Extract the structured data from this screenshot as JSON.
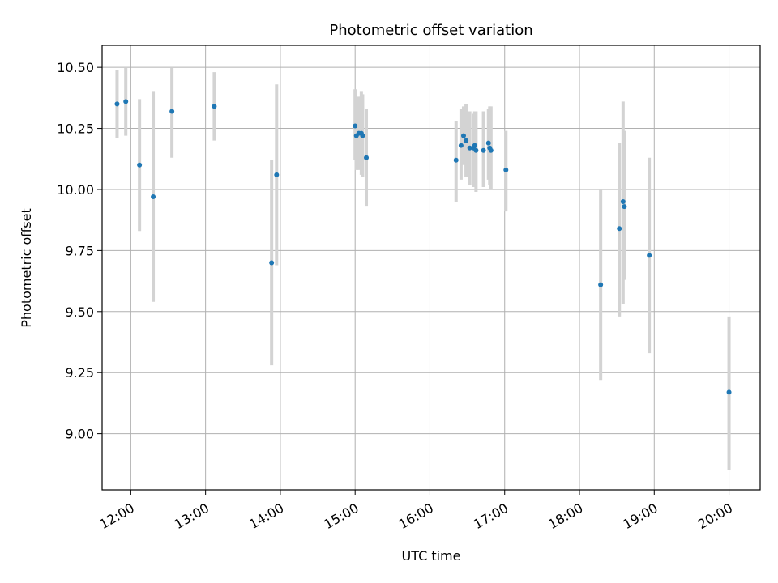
{
  "chart_data": {
    "type": "scatter",
    "title": "Photometric offset variation",
    "xlabel": "UTC time",
    "ylabel": "Photometric offset",
    "x_tick_labels": [
      "12:00",
      "13:00",
      "14:00",
      "15:00",
      "16:00",
      "17:00",
      "18:00",
      "19:00",
      "20:00"
    ],
    "x_ticks": [
      "12:00",
      "13:00",
      "14:00",
      "15:00",
      "16:00",
      "17:00",
      "18:00",
      "19:00",
      "20:00"
    ],
    "y_tick_labels": [
      "9.00",
      "9.25",
      "9.50",
      "9.75",
      "10.00",
      "10.25",
      "10.50"
    ],
    "y_ticks": [
      9.0,
      9.25,
      9.5,
      9.75,
      10.0,
      10.25,
      10.5
    ],
    "xlim": [
      "11:37",
      "20:25"
    ],
    "ylim": [
      8.77,
      10.59
    ],
    "grid": true,
    "colors": {
      "points": "#1f77b4",
      "error_bars": "#d3d3d3",
      "grid": "#b0b0b0"
    },
    "points": [
      {
        "x": "11:49",
        "y": 10.35,
        "ylow": 10.21,
        "yhigh": 10.49
      },
      {
        "x": "11:56",
        "y": 10.36,
        "ylow": 10.22,
        "yhigh": 10.5
      },
      {
        "x": "12:07",
        "y": 10.1,
        "ylow": 9.83,
        "yhigh": 10.37
      },
      {
        "x": "12:18",
        "y": 9.97,
        "ylow": 9.54,
        "yhigh": 10.4
      },
      {
        "x": "12:33",
        "y": 10.32,
        "ylow": 10.13,
        "yhigh": 10.5
      },
      {
        "x": "13:07",
        "y": 10.34,
        "ylow": 10.2,
        "yhigh": 10.48
      },
      {
        "x": "13:53",
        "y": 9.7,
        "ylow": 9.28,
        "yhigh": 10.12
      },
      {
        "x": "13:57",
        "y": 10.06,
        "ylow": 9.69,
        "yhigh": 10.43
      },
      {
        "x": "15:00",
        "y": 10.26,
        "ylow": 10.12,
        "yhigh": 10.41
      },
      {
        "x": "15:01",
        "y": 10.22,
        "ylow": 10.08,
        "yhigh": 10.37
      },
      {
        "x": "15:03",
        "y": 10.23,
        "ylow": 10.08,
        "yhigh": 10.38
      },
      {
        "x": "15:05",
        "y": 10.23,
        "ylow": 10.06,
        "yhigh": 10.4
      },
      {
        "x": "15:06",
        "y": 10.22,
        "ylow": 10.05,
        "yhigh": 10.39
      },
      {
        "x": "15:09",
        "y": 10.13,
        "ylow": 9.93,
        "yhigh": 10.33
      },
      {
        "x": "16:21",
        "y": 10.12,
        "ylow": 9.95,
        "yhigh": 10.28
      },
      {
        "x": "16:25",
        "y": 10.18,
        "ylow": 10.04,
        "yhigh": 10.33
      },
      {
        "x": "16:27",
        "y": 10.22,
        "ylow": 10.1,
        "yhigh": 10.34
      },
      {
        "x": "16:29",
        "y": 10.2,
        "ylow": 10.05,
        "yhigh": 10.35
      },
      {
        "x": "16:32",
        "y": 10.17,
        "ylow": 10.02,
        "yhigh": 10.32
      },
      {
        "x": "16:35",
        "y": 10.17,
        "ylow": 10.01,
        "yhigh": 10.31
      },
      {
        "x": "16:36",
        "y": 10.18,
        "ylow": 10.03,
        "yhigh": 10.32
      },
      {
        "x": "16:37",
        "y": 10.16,
        "ylow": 9.99,
        "yhigh": 10.32
      },
      {
        "x": "16:43",
        "y": 10.16,
        "ylow": 10.01,
        "yhigh": 10.32
      },
      {
        "x": "16:47",
        "y": 10.19,
        "ylow": 10.04,
        "yhigh": 10.33
      },
      {
        "x": "16:48",
        "y": 10.17,
        "ylow": 10.02,
        "yhigh": 10.34
      },
      {
        "x": "16:49",
        "y": 10.16,
        "ylow": 10.0,
        "yhigh": 10.34
      },
      {
        "x": "17:01",
        "y": 10.08,
        "ylow": 9.91,
        "yhigh": 10.24
      },
      {
        "x": "18:17",
        "y": 9.61,
        "ylow": 9.22,
        "yhigh": 10.0
      },
      {
        "x": "18:32",
        "y": 9.84,
        "ylow": 9.48,
        "yhigh": 10.19
      },
      {
        "x": "18:35",
        "y": 9.95,
        "ylow": 9.53,
        "yhigh": 10.36
      },
      {
        "x": "18:36",
        "y": 9.93,
        "ylow": 9.63,
        "yhigh": 10.24
      },
      {
        "x": "18:56",
        "y": 9.73,
        "ylow": 9.33,
        "yhigh": 10.13
      },
      {
        "x": "20:00",
        "y": 9.17,
        "ylow": 8.85,
        "yhigh": 9.48
      }
    ]
  }
}
